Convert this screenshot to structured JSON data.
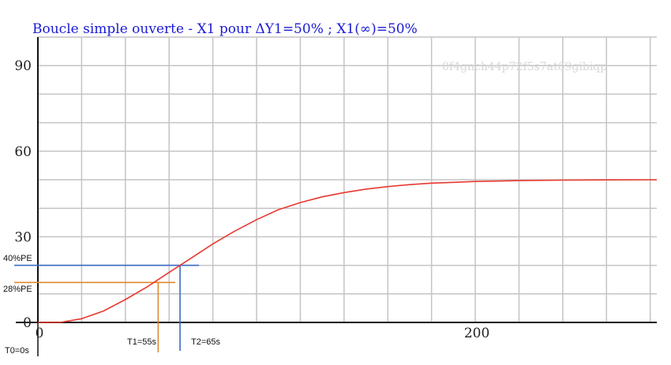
{
  "chart_data": {
    "type": "line",
    "title": "Boucle simple ouverte - X1 pour ΔY1=50% ; X1(∞)=50%",
    "watermark": "0f4gnch44p72f5s7at69gibiqp",
    "xlim": [
      0,
      283
    ],
    "ylim": [
      0,
      100
    ],
    "grid": true,
    "x_ticks": [
      {
        "value": 0,
        "label": "0"
      },
      {
        "value": 200,
        "label": "200"
      }
    ],
    "y_ticks": [
      {
        "value": 0,
        "label": "0"
      },
      {
        "value": 30,
        "label": "30"
      },
      {
        "value": 60,
        "label": "60"
      },
      {
        "value": 90,
        "label": "90"
      }
    ],
    "series": [
      {
        "color": "#e8392f",
        "x": [
          0,
          10,
          20,
          30,
          40,
          50,
          55,
          60,
          65,
          70,
          80,
          90,
          100,
          110,
          120,
          130,
          140,
          150,
          160,
          170,
          180,
          190,
          200,
          220,
          240,
          260,
          283
        ],
        "y": [
          0,
          0,
          1.3,
          4,
          8,
          12.5,
          15,
          17.5,
          20,
          22.5,
          27.5,
          32,
          36,
          39.5,
          42,
          44,
          45.5,
          46.7,
          47.6,
          48.3,
          48.8,
          49.1,
          49.4,
          49.7,
          49.85,
          49.95,
          50
        ]
      }
    ],
    "annotations": {
      "pe40": {
        "label": "40%PE",
        "y": 20,
        "color": "#3a6bc4"
      },
      "pe28": {
        "label": "28%PE",
        "y": 14,
        "color": "#e08a2c"
      },
      "t0": {
        "label": "T0=0s",
        "x": 0
      },
      "t1": {
        "label": "T1=55s",
        "x": 55,
        "color": "#e08a2c"
      },
      "t2": {
        "label": "T2=65s",
        "x": 65,
        "color": "#3a6bc4"
      }
    }
  }
}
